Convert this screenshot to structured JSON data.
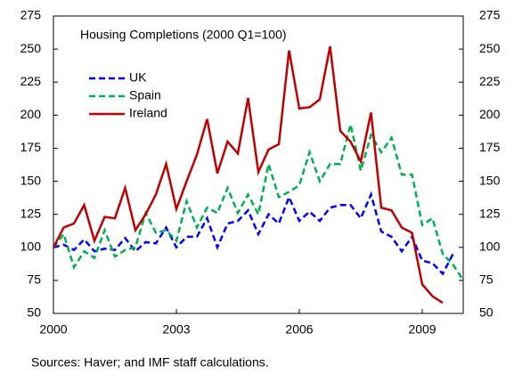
{
  "chart_data": {
    "type": "line",
    "title": "Housing Completions (2000 Q1=100)",
    "source": "Sources: Haver; and IMF staff calculations.",
    "x": [
      2000,
      2000.25,
      2000.5,
      2000.75,
      2001,
      2001.25,
      2001.5,
      2001.75,
      2002,
      2002.25,
      2002.5,
      2002.75,
      2003,
      2003.25,
      2003.5,
      2003.75,
      2004,
      2004.25,
      2004.5,
      2004.75,
      2005,
      2005.25,
      2005.5,
      2005.75,
      2006,
      2006.25,
      2006.5,
      2006.75,
      2007,
      2007.25,
      2007.5,
      2007.75,
      2008,
      2008.25,
      2008.5,
      2008.75,
      2009,
      2009.25,
      2009.5,
      2009.75,
      2010
    ],
    "series": [
      {
        "name": "UK",
        "color": "#0000ff",
        "style": "dashed",
        "values": [
          100,
          102,
          98,
          106,
          97,
          99,
          98,
          107,
          97,
          104,
          103,
          115,
          100,
          108,
          108,
          122,
          100,
          118,
          120,
          128,
          110,
          125,
          118,
          138,
          120,
          127,
          120,
          130,
          132,
          132,
          122,
          140,
          112,
          108,
          97,
          108,
          90,
          88,
          80,
          95,
          null
        ]
      },
      {
        "name": "Spain",
        "color": "#00b050",
        "style": "dashed",
        "values": [
          100,
          110,
          85,
          97,
          92,
          113,
          93,
          98,
          100,
          126,
          111,
          113,
          105,
          135,
          115,
          130,
          126,
          145,
          126,
          140,
          125,
          163,
          138,
          142,
          147,
          172,
          150,
          163,
          163,
          193,
          158,
          185,
          172,
          183,
          155,
          155,
          117,
          122,
          95,
          87,
          75
        ]
      },
      {
        "name": "Ireland",
        "color": "#c00000",
        "style": "solid",
        "values": [
          100,
          115,
          118,
          132,
          105,
          123,
          122,
          145,
          113,
          125,
          140,
          163,
          129,
          150,
          170,
          197,
          156,
          180,
          171,
          213,
          157,
          174,
          178,
          249,
          205,
          206,
          212,
          252,
          188,
          180,
          165,
          202,
          130,
          128,
          115,
          111,
          72,
          63,
          58,
          null,
          null
        ]
      }
    ],
    "xlim": [
      2000,
      2010
    ],
    "xticks": [
      2000,
      2003,
      2006,
      2009
    ],
    "ylim": [
      50,
      275
    ],
    "yticks": [
      50,
      75,
      100,
      125,
      150,
      175,
      200,
      225,
      250,
      275
    ],
    "y2lim": [
      50,
      275
    ],
    "y2ticks": [
      50,
      75,
      100,
      125,
      150,
      175,
      200,
      225,
      250,
      275
    ],
    "grid": false,
    "legend": "upper-left"
  }
}
